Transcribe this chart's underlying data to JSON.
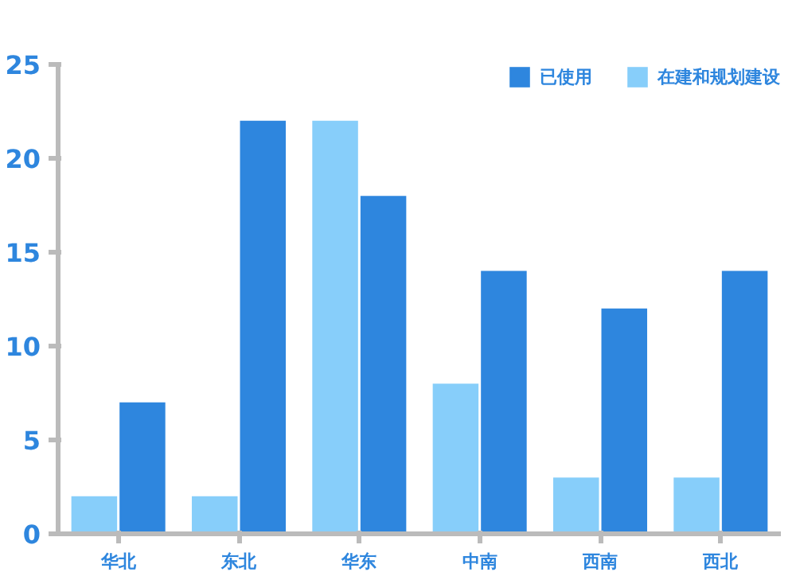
{
  "chart_data": {
    "type": "bar",
    "categories": [
      "华北",
      "东北",
      "华东",
      "中南",
      "西南",
      "西北"
    ],
    "series": [
      {
        "name": "在建和规划建设",
        "color": "#87cefa",
        "values": [
          2,
          2,
          22,
          8,
          3,
          3
        ]
      },
      {
        "name": "已使用",
        "color": "#2e86de",
        "values": [
          7,
          22,
          18,
          14,
          12,
          14
        ]
      }
    ],
    "ylim": [
      0,
      25
    ],
    "yticks": [
      0,
      5,
      10,
      15,
      20,
      25
    ],
    "grid": false,
    "legend": "top right"
  }
}
